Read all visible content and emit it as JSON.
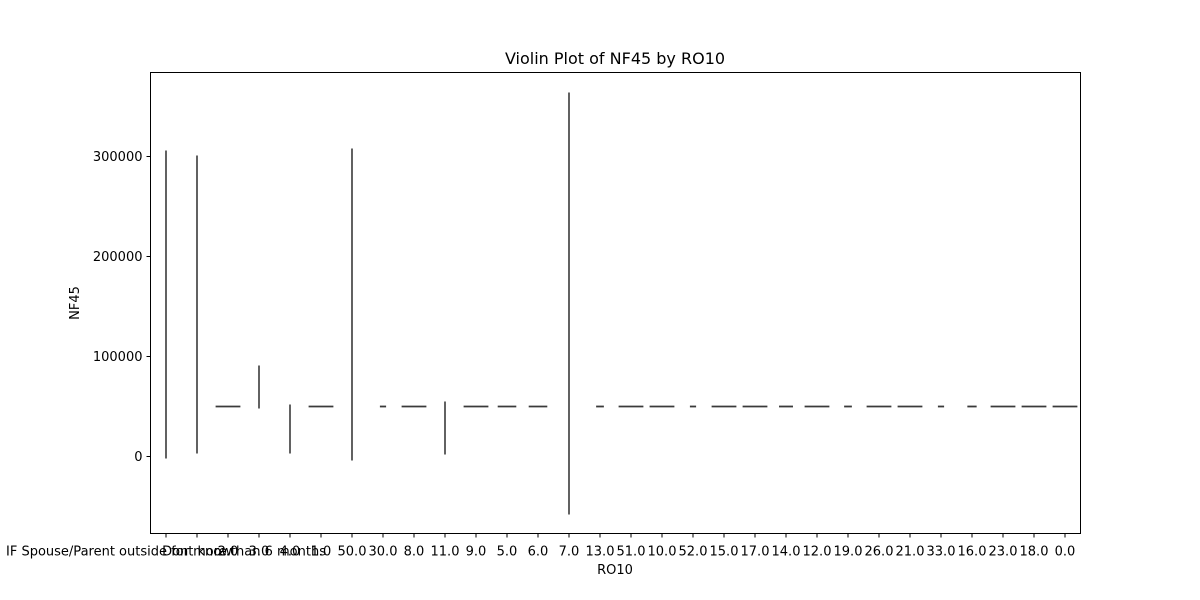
{
  "chart_data": {
    "type": "violin",
    "title": "Violin Plot of NF45 by RO10",
    "xlabel": "RO10",
    "ylabel": "NF45",
    "ylim": [
      -77000,
      384000
    ],
    "yticks": [
      0,
      100000,
      200000,
      300000
    ],
    "ytick_labels": [
      "0",
      "100000",
      "200000",
      "300000"
    ],
    "grid": false,
    "categories": [
      "IF Spouse/Parent outside for more than 6 months",
      "Dont know",
      "2.0",
      "3.0",
      "4.0",
      "1.0",
      "50.0",
      "30.0",
      "8.0",
      "11.0",
      "9.0",
      "5.0",
      "6.0",
      "7.0",
      "13.0",
      "51.0",
      "10.0",
      "52.0",
      "15.0",
      "17.0",
      "14.0",
      "12.0",
      "19.0",
      "26.0",
      "21.0",
      "33.0",
      "16.0",
      "23.0",
      "18.0",
      "0.0"
    ],
    "violins": [
      {
        "category": "IF Spouse/Parent outside for more than 6 months",
        "min": -2000,
        "max": 306000,
        "width": 0.02
      },
      {
        "category": "Dont know",
        "min": 3000,
        "max": 301000,
        "width": 0.02
      },
      {
        "category": "2.0",
        "min": 50000,
        "max": 50000,
        "width": 0.8
      },
      {
        "category": "3.0",
        "min": 48000,
        "max": 91000,
        "width": 0.02
      },
      {
        "category": "4.0",
        "min": 3000,
        "max": 52000,
        "width": 0.02
      },
      {
        "category": "1.0",
        "min": 50000,
        "max": 50000,
        "width": 0.8
      },
      {
        "category": "50.0",
        "min": -4000,
        "max": 308000,
        "width": 0.02
      },
      {
        "category": "30.0",
        "min": 50000,
        "max": 50000,
        "width": 0.2
      },
      {
        "category": "8.0",
        "min": 50000,
        "max": 50000,
        "width": 0.8
      },
      {
        "category": "11.0",
        "min": 2000,
        "max": 55000,
        "width": 0.02
      },
      {
        "category": "9.0",
        "min": 50000,
        "max": 50000,
        "width": 0.8
      },
      {
        "category": "5.0",
        "min": 50000,
        "max": 50000,
        "width": 0.6
      },
      {
        "category": "6.0",
        "min": 50000,
        "max": 50000,
        "width": 0.6
      },
      {
        "category": "7.0",
        "min": -58000,
        "max": 364000,
        "width": 0.02
      },
      {
        "category": "13.0",
        "min": 50000,
        "max": 50000,
        "width": 0.25
      },
      {
        "category": "51.0",
        "min": 50000,
        "max": 50000,
        "width": 0.8
      },
      {
        "category": "10.0",
        "min": 50000,
        "max": 50000,
        "width": 0.8
      },
      {
        "category": "52.0",
        "min": 50000,
        "max": 50000,
        "width": 0.2
      },
      {
        "category": "15.0",
        "min": 50000,
        "max": 50000,
        "width": 0.8
      },
      {
        "category": "17.0",
        "min": 50000,
        "max": 50000,
        "width": 0.8
      },
      {
        "category": "14.0",
        "min": 50000,
        "max": 50000,
        "width": 0.45
      },
      {
        "category": "12.0",
        "min": 50000,
        "max": 50000,
        "width": 0.8
      },
      {
        "category": "19.0",
        "min": 50000,
        "max": 50000,
        "width": 0.25
      },
      {
        "category": "26.0",
        "min": 50000,
        "max": 50000,
        "width": 0.8
      },
      {
        "category": "21.0",
        "min": 50000,
        "max": 50000,
        "width": 0.8
      },
      {
        "category": "33.0",
        "min": 50000,
        "max": 50000,
        "width": 0.2
      },
      {
        "category": "16.0",
        "min": 50000,
        "max": 50000,
        "width": 0.3
      },
      {
        "category": "23.0",
        "min": 50000,
        "max": 50000,
        "width": 0.8
      },
      {
        "category": "18.0",
        "min": 50000,
        "max": 50000,
        "width": 0.8
      },
      {
        "category": "0.0",
        "min": 50000,
        "max": 50000,
        "width": 0.8
      }
    ],
    "colors": {
      "violin": "#3a3a3a",
      "axes": "#000000",
      "background": "#ffffff"
    }
  }
}
